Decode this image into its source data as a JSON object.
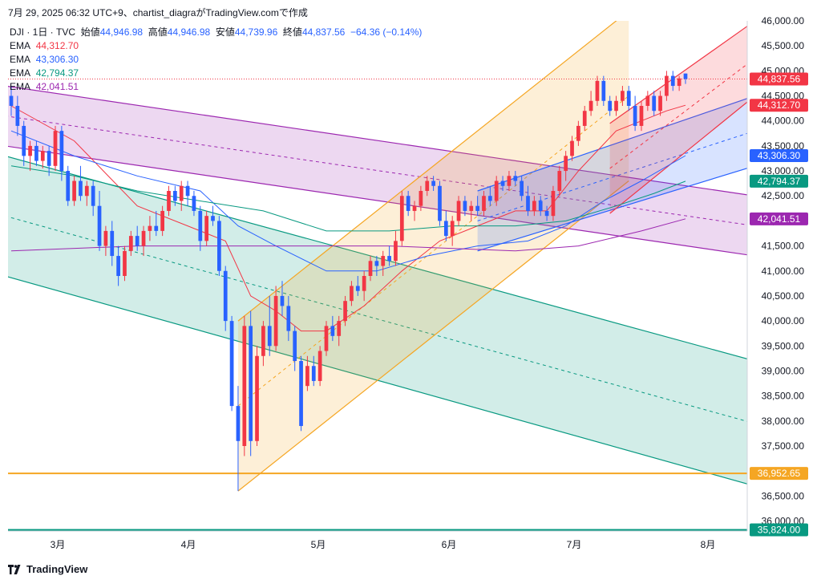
{
  "caption": "7月 29, 2025 06:32 UTC+9、chartist_diagraがTradingView.comで作成",
  "header": {
    "symbol": "DJI · 1日 · TVC",
    "open_label": "始値",
    "open": "44,946.98",
    "high_label": "高値",
    "high": "44,946.98",
    "low_label": "安値",
    "low": "44,739.96",
    "close_label": "終値",
    "close": "44,837.56",
    "change": "−64.36 (−0.14%)"
  },
  "emas": [
    {
      "label": "EMA",
      "value": "44,312.70",
      "color": "#f23645"
    },
    {
      "label": "EMA",
      "value": "43,306.30",
      "color": "#2962ff"
    },
    {
      "label": "EMA",
      "value": "42,794.37",
      "color": "#089981"
    },
    {
      "label": "EMA",
      "value": "42,041.51",
      "color": "#9c27b0"
    }
  ],
  "footer": {
    "brand": "TradingView"
  },
  "colors": {
    "up": "#f23645",
    "down": "#2962ff",
    "horizontal_line": "#f5a623",
    "bottom_line": "#089981"
  },
  "chart_data": {
    "type": "candlestick",
    "ylim": [
      35800,
      46000
    ],
    "y_ticks": [
      36000,
      36500,
      37000,
      37500,
      38000,
      38500,
      39000,
      39500,
      40000,
      40500,
      41000,
      41500,
      42000,
      42500,
      43000,
      43500,
      44000,
      44500,
      45000,
      45500,
      46000
    ],
    "y_tick_labels": [
      "36,000.00",
      "36,500.00",
      "37,000.00",
      "37,500.00",
      "38,000.00",
      "38,500.00",
      "39,000.00",
      "39,500.00",
      "40,000.00",
      "40,500.00",
      "41,000.00",
      "41,500.00",
      "42,000.00",
      "42,500.00",
      "43,000.00",
      "43,500.00",
      "44,000.00",
      "44,500.00",
      "45,000.00",
      "45,500.00",
      "46,000.00"
    ],
    "x_month_labels": [
      "3月",
      "4月",
      "5月",
      "6月",
      "7月",
      "8月"
    ],
    "price_tags": [
      {
        "value": 44837.56,
        "label": "44,837.56",
        "color": "#f23645"
      },
      {
        "value": 44312.7,
        "label": "44,312.70",
        "color": "#f23645"
      },
      {
        "value": 43306.3,
        "label": "43,306.30",
        "color": "#2962ff"
      },
      {
        "value": 42794.37,
        "label": "42,794.37",
        "color": "#089981"
      },
      {
        "value": 42041.51,
        "label": "42,041.51",
        "color": "#9c27b0"
      },
      {
        "value": 36952.65,
        "label": "36,952.65",
        "color": "#f5a623"
      },
      {
        "value": 35824.0,
        "label": "35,824.00",
        "color": "#089981"
      }
    ],
    "horizontal_lines": [
      {
        "value": 36952.65,
        "color": "#f5a623"
      },
      {
        "value": 35824.0,
        "color": "#089981"
      }
    ],
    "candles": [
      {
        "o": 44500,
        "h": 44700,
        "l": 44100,
        "c": 44300
      },
      {
        "o": 44300,
        "h": 44500,
        "l": 43700,
        "c": 43900
      },
      {
        "o": 43900,
        "h": 44000,
        "l": 43100,
        "c": 43300
      },
      {
        "o": 43300,
        "h": 43600,
        "l": 43000,
        "c": 43500
      },
      {
        "o": 43500,
        "h": 43600,
        "l": 43100,
        "c": 43200
      },
      {
        "o": 43200,
        "h": 43500,
        "l": 43050,
        "c": 43400
      },
      {
        "o": 43400,
        "h": 43500,
        "l": 42900,
        "c": 43100
      },
      {
        "o": 43100,
        "h": 43900,
        "l": 43000,
        "c": 43800
      },
      {
        "o": 43800,
        "h": 43900,
        "l": 42800,
        "c": 43000
      },
      {
        "o": 43000,
        "h": 43100,
        "l": 42300,
        "c": 42400
      },
      {
        "o": 42400,
        "h": 42900,
        "l": 42300,
        "c": 42800
      },
      {
        "o": 42800,
        "h": 43100,
        "l": 42400,
        "c": 42500
      },
      {
        "o": 42500,
        "h": 42800,
        "l": 42300,
        "c": 42700
      },
      {
        "o": 42700,
        "h": 42800,
        "l": 42100,
        "c": 42300
      },
      {
        "o": 42300,
        "h": 42600,
        "l": 41400,
        "c": 41500
      },
      {
        "o": 41500,
        "h": 41900,
        "l": 41300,
        "c": 41800
      },
      {
        "o": 41800,
        "h": 42000,
        "l": 41100,
        "c": 41300
      },
      {
        "o": 41300,
        "h": 41500,
        "l": 40700,
        "c": 40900
      },
      {
        "o": 40900,
        "h": 41500,
        "l": 40800,
        "c": 41400
      },
      {
        "o": 41400,
        "h": 41800,
        "l": 41300,
        "c": 41700
      },
      {
        "o": 41700,
        "h": 41900,
        "l": 41400,
        "c": 41500
      },
      {
        "o": 41500,
        "h": 41900,
        "l": 41300,
        "c": 41800
      },
      {
        "o": 41800,
        "h": 42100,
        "l": 41600,
        "c": 41900
      },
      {
        "o": 41900,
        "h": 42200,
        "l": 41700,
        "c": 41800
      },
      {
        "o": 41800,
        "h": 42300,
        "l": 41700,
        "c": 42200
      },
      {
        "o": 42200,
        "h": 42700,
        "l": 42100,
        "c": 42600
      },
      {
        "o": 42600,
        "h": 42700,
        "l": 42300,
        "c": 42400
      },
      {
        "o": 42400,
        "h": 42800,
        "l": 42200,
        "c": 42700
      },
      {
        "o": 42700,
        "h": 42800,
        "l": 42300,
        "c": 42500
      },
      {
        "o": 42500,
        "h": 42600,
        "l": 42100,
        "c": 42200
      },
      {
        "o": 42200,
        "h": 42300,
        "l": 41400,
        "c": 41600
      },
      {
        "o": 41600,
        "h": 42200,
        "l": 41500,
        "c": 42100
      },
      {
        "o": 42100,
        "h": 42300,
        "l": 41900,
        "c": 42000
      },
      {
        "o": 42000,
        "h": 42100,
        "l": 40900,
        "c": 41000
      },
      {
        "o": 41000,
        "h": 41100,
        "l": 39800,
        "c": 40000
      },
      {
        "o": 40000,
        "h": 40100,
        "l": 38200,
        "c": 38300
      },
      {
        "o": 38300,
        "h": 38700,
        "l": 36600,
        "c": 37600
      },
      {
        "o": 37500,
        "h": 40100,
        "l": 37300,
        "c": 39900
      },
      {
        "o": 39900,
        "h": 40200,
        "l": 37300,
        "c": 37600
      },
      {
        "o": 37600,
        "h": 39500,
        "l": 37500,
        "c": 39300
      },
      {
        "o": 39300,
        "h": 40000,
        "l": 39100,
        "c": 39900
      },
      {
        "o": 39900,
        "h": 40500,
        "l": 39300,
        "c": 39500
      },
      {
        "o": 39500,
        "h": 40700,
        "l": 39400,
        "c": 40500
      },
      {
        "o": 40500,
        "h": 40800,
        "l": 40100,
        "c": 40300
      },
      {
        "o": 40300,
        "h": 40500,
        "l": 39600,
        "c": 39800
      },
      {
        "o": 39800,
        "h": 39900,
        "l": 39000,
        "c": 39200
      },
      {
        "o": 39200,
        "h": 39300,
        "l": 37800,
        "c": 37900
      },
      {
        "o": 38700,
        "h": 39300,
        "l": 38600,
        "c": 39100
      },
      {
        "o": 39100,
        "h": 39300,
        "l": 38700,
        "c": 38800
      },
      {
        "o": 38800,
        "h": 39500,
        "l": 38700,
        "c": 39400
      },
      {
        "o": 39400,
        "h": 40000,
        "l": 39300,
        "c": 39900
      },
      {
        "o": 39900,
        "h": 40100,
        "l": 39600,
        "c": 39700
      },
      {
        "o": 39700,
        "h": 40100,
        "l": 39500,
        "c": 40000
      },
      {
        "o": 40000,
        "h": 40500,
        "l": 39900,
        "c": 40400
      },
      {
        "o": 40400,
        "h": 40800,
        "l": 40300,
        "c": 40700
      },
      {
        "o": 40700,
        "h": 40900,
        "l": 40500,
        "c": 40600
      },
      {
        "o": 40600,
        "h": 41000,
        "l": 40400,
        "c": 40900
      },
      {
        "o": 40900,
        "h": 41300,
        "l": 40800,
        "c": 41200
      },
      {
        "o": 41200,
        "h": 41300,
        "l": 40900,
        "c": 41100
      },
      {
        "o": 41100,
        "h": 41400,
        "l": 40900,
        "c": 41300
      },
      {
        "o": 41300,
        "h": 41500,
        "l": 41100,
        "c": 41200
      },
      {
        "o": 41200,
        "h": 41800,
        "l": 41100,
        "c": 41600
      },
      {
        "o": 41600,
        "h": 42600,
        "l": 41500,
        "c": 42500
      },
      {
        "o": 42500,
        "h": 42600,
        "l": 42100,
        "c": 42200
      },
      {
        "o": 42200,
        "h": 42400,
        "l": 42000,
        "c": 42300
      },
      {
        "o": 42300,
        "h": 42700,
        "l": 42200,
        "c": 42600
      },
      {
        "o": 42600,
        "h": 42900,
        "l": 42500,
        "c": 42800
      },
      {
        "o": 42800,
        "h": 42900,
        "l": 42600,
        "c": 42700
      },
      {
        "o": 42700,
        "h": 42800,
        "l": 41900,
        "c": 42000
      },
      {
        "o": 42000,
        "h": 42200,
        "l": 41600,
        "c": 41700
      },
      {
        "o": 41700,
        "h": 42100,
        "l": 41500,
        "c": 42000
      },
      {
        "o": 42000,
        "h": 42500,
        "l": 41900,
        "c": 42400
      },
      {
        "o": 42400,
        "h": 42500,
        "l": 42100,
        "c": 42200
      },
      {
        "o": 42200,
        "h": 42400,
        "l": 42000,
        "c": 42300
      },
      {
        "o": 42300,
        "h": 42500,
        "l": 42100,
        "c": 42200
      },
      {
        "o": 42200,
        "h": 42600,
        "l": 42100,
        "c": 42500
      },
      {
        "o": 42500,
        "h": 42700,
        "l": 42300,
        "c": 42400
      },
      {
        "o": 42400,
        "h": 42900,
        "l": 42300,
        "c": 42800
      },
      {
        "o": 42800,
        "h": 42900,
        "l": 42600,
        "c": 42700
      },
      {
        "o": 42700,
        "h": 43000,
        "l": 42600,
        "c": 42900
      },
      {
        "o": 42900,
        "h": 43000,
        "l": 42700,
        "c": 42800
      },
      {
        "o": 42800,
        "h": 42900,
        "l": 42400,
        "c": 42500
      },
      {
        "o": 42500,
        "h": 42700,
        "l": 42100,
        "c": 42200
      },
      {
        "o": 42200,
        "h": 42500,
        "l": 42100,
        "c": 42400
      },
      {
        "o": 42400,
        "h": 42500,
        "l": 42100,
        "c": 42200
      },
      {
        "o": 42200,
        "h": 42300,
        "l": 42000,
        "c": 42100
      },
      {
        "o": 42100,
        "h": 42700,
        "l": 42000,
        "c": 42600
      },
      {
        "o": 42600,
        "h": 43100,
        "l": 42500,
        "c": 43000
      },
      {
        "o": 43000,
        "h": 43400,
        "l": 42800,
        "c": 43300
      },
      {
        "o": 43300,
        "h": 43700,
        "l": 43200,
        "c": 43600
      },
      {
        "o": 43600,
        "h": 44000,
        "l": 43500,
        "c": 43900
      },
      {
        "o": 43900,
        "h": 44300,
        "l": 43800,
        "c": 44200
      },
      {
        "o": 44200,
        "h": 44600,
        "l": 44100,
        "c": 44400
      },
      {
        "o": 44400,
        "h": 44900,
        "l": 44300,
        "c": 44800
      },
      {
        "o": 44800,
        "h": 44900,
        "l": 44300,
        "c": 44400
      },
      {
        "o": 44400,
        "h": 44500,
        "l": 44100,
        "c": 44200
      },
      {
        "o": 44200,
        "h": 44500,
        "l": 44100,
        "c": 44400
      },
      {
        "o": 44400,
        "h": 44700,
        "l": 44300,
        "c": 44600
      },
      {
        "o": 44600,
        "h": 44700,
        "l": 44200,
        "c": 44300
      },
      {
        "o": 44300,
        "h": 44500,
        "l": 43800,
        "c": 43900
      },
      {
        "o": 43900,
        "h": 44400,
        "l": 43800,
        "c": 44300
      },
      {
        "o": 44300,
        "h": 44600,
        "l": 44200,
        "c": 44500
      },
      {
        "o": 44500,
        "h": 44600,
        "l": 44100,
        "c": 44200
      },
      {
        "o": 44200,
        "h": 44600,
        "l": 44100,
        "c": 44500
      },
      {
        "o": 44500,
        "h": 45000,
        "l": 44400,
        "c": 44900
      },
      {
        "o": 44900,
        "h": 45000,
        "l": 44600,
        "c": 44700
      },
      {
        "o": 44700,
        "h": 44900,
        "l": 44600,
        "c": 44850
      },
      {
        "o": 44946.98,
        "h": 44946.98,
        "l": 44739.96,
        "c": 44837.56
      }
    ],
    "ema_lines": [
      {
        "name": "EMA 44,312.70",
        "color": "#f23645",
        "points": [
          [
            0,
            44300
          ],
          [
            10,
            43600
          ],
          [
            20,
            42300
          ],
          [
            30,
            41800
          ],
          [
            34,
            41600
          ],
          [
            38,
            40500
          ],
          [
            42,
            40200
          ],
          [
            46,
            39800
          ],
          [
            50,
            39800
          ],
          [
            56,
            40300
          ],
          [
            62,
            41000
          ],
          [
            68,
            41600
          ],
          [
            74,
            41900
          ],
          [
            80,
            42200
          ],
          [
            85,
            42200
          ],
          [
            90,
            43000
          ],
          [
            96,
            43800
          ],
          [
            100,
            44000
          ],
          [
            104,
            44200
          ],
          [
            107,
            44313
          ]
        ]
      },
      {
        "name": "EMA 43,306.30",
        "color": "#2962ff",
        "points": [
          [
            0,
            43800
          ],
          [
            10,
            43300
          ],
          [
            20,
            42900
          ],
          [
            30,
            42600
          ],
          [
            36,
            41900
          ],
          [
            42,
            41500
          ],
          [
            50,
            41000
          ],
          [
            58,
            41000
          ],
          [
            66,
            41300
          ],
          [
            74,
            41500
          ],
          [
            82,
            41600
          ],
          [
            88,
            41900
          ],
          [
            94,
            42400
          ],
          [
            100,
            42800
          ],
          [
            107,
            43306
          ]
        ]
      },
      {
        "name": "EMA 42,794.37",
        "color": "#089981",
        "points": [
          [
            0,
            43100
          ],
          [
            10,
            42900
          ],
          [
            20,
            42600
          ],
          [
            30,
            42400
          ],
          [
            40,
            42200
          ],
          [
            50,
            41800
          ],
          [
            60,
            41800
          ],
          [
            70,
            41900
          ],
          [
            80,
            41900
          ],
          [
            88,
            42000
          ],
          [
            96,
            42300
          ],
          [
            102,
            42550
          ],
          [
            107,
            42794
          ]
        ]
      },
      {
        "name": "EMA 42,041.51",
        "color": "#9c27b0",
        "points": [
          [
            0,
            41400
          ],
          [
            20,
            41500
          ],
          [
            40,
            41500
          ],
          [
            60,
            41500
          ],
          [
            80,
            41400
          ],
          [
            90,
            41500
          ],
          [
            100,
            41800
          ],
          [
            107,
            42042
          ]
        ]
      }
    ]
  }
}
